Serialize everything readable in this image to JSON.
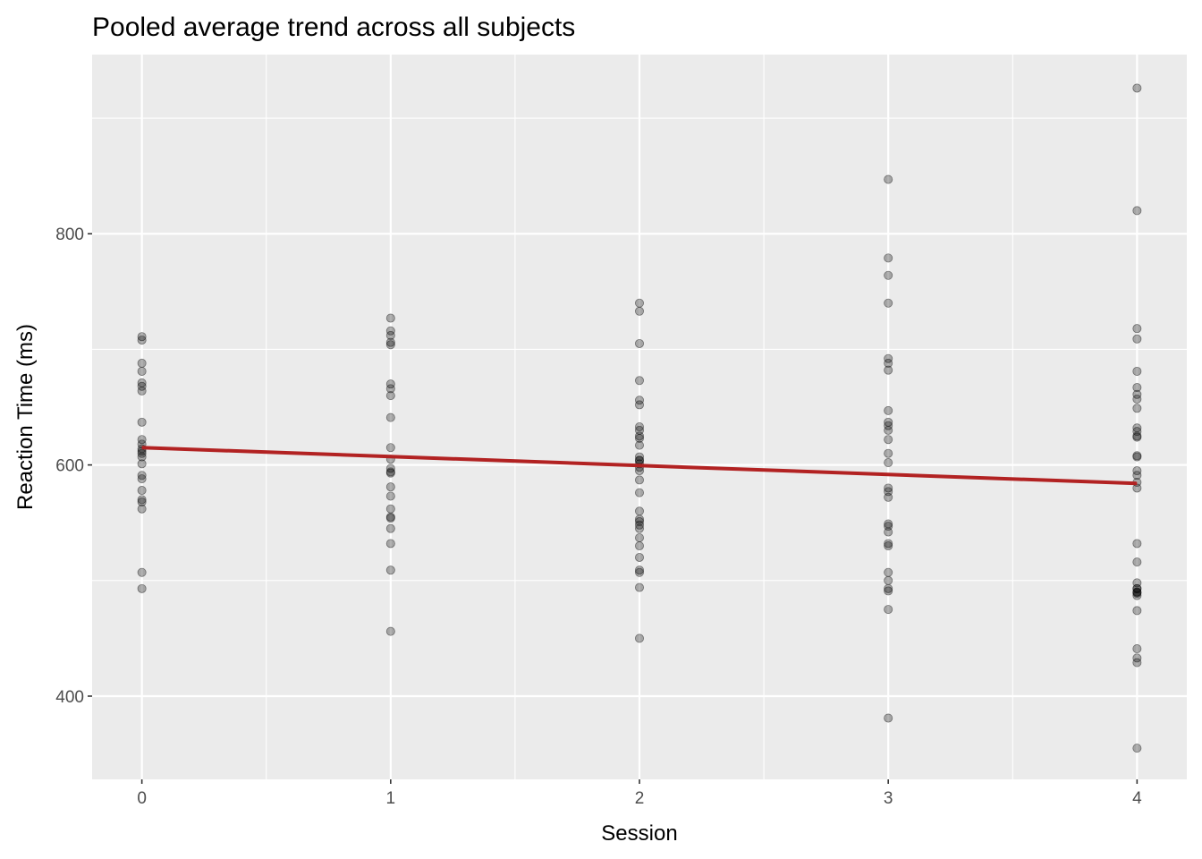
{
  "chart_data": {
    "type": "scatter",
    "title": "Pooled average trend across all subjects",
    "xlabel": "Session",
    "ylabel": "Reaction Time (ms)",
    "xlim": [
      -0.2,
      4.2
    ],
    "ylim": [
      328,
      955
    ],
    "x_ticks": [
      0,
      1,
      2,
      3,
      4
    ],
    "y_ticks": [
      400,
      600,
      800
    ],
    "grid": true,
    "legend": "none",
    "colors": {
      "panel": "#ebebeb",
      "grid": "#ffffff",
      "points": "#000000",
      "trend": "#b22222",
      "tick_text": "#4d4d4d",
      "tick_mark": "#333333"
    },
    "series": [
      {
        "x": [
          0,
          0,
          0,
          0,
          0,
          0,
          0,
          0,
          0,
          0,
          0,
          0,
          0,
          0,
          0,
          0,
          0,
          0,
          0,
          0,
          0,
          0,
          0
        ],
        "y": [
          711,
          708,
          688,
          681,
          671,
          668,
          664,
          637,
          622,
          618,
          614,
          612,
          610,
          607,
          601,
          591,
          588,
          578,
          570,
          568,
          562,
          507,
          493
        ]
      },
      {
        "x": [
          1,
          1,
          1,
          1,
          1,
          1,
          1,
          1,
          1,
          1,
          1,
          1,
          1,
          1,
          1,
          1,
          1,
          1,
          1,
          1,
          1,
          1,
          1
        ],
        "y": [
          727,
          716,
          712,
          706,
          704,
          670,
          666,
          660,
          641,
          615,
          605,
          597,
          594,
          593,
          581,
          573,
          562,
          555,
          554,
          545,
          532,
          509,
          456
        ]
      },
      {
        "x": [
          2,
          2,
          2,
          2,
          2,
          2,
          2,
          2,
          2,
          2,
          2,
          2,
          2,
          2,
          2,
          2,
          2,
          2,
          2,
          2,
          2,
          2,
          2,
          2,
          2,
          2,
          2,
          2,
          2,
          2,
          2
        ],
        "y": [
          740,
          733,
          705,
          673,
          656,
          652,
          633,
          630,
          625,
          617,
          607,
          604,
          601,
          598,
          595,
          587,
          576,
          560,
          553,
          551,
          548,
          537,
          530,
          520,
          509,
          507,
          494,
          450,
          623,
          604,
          545
        ]
      },
      {
        "x": [
          3,
          3,
          3,
          3,
          3,
          3,
          3,
          3,
          3,
          3,
          3,
          3,
          3,
          3,
          3,
          3,
          3,
          3,
          3,
          3,
          3,
          3,
          3,
          3,
          3,
          3,
          3,
          3
        ],
        "y": [
          847,
          779,
          764,
          740,
          692,
          688,
          682,
          647,
          637,
          634,
          630,
          622,
          610,
          602,
          580,
          577,
          572,
          549,
          547,
          542,
          532,
          530,
          507,
          500,
          493,
          491,
          475,
          381
        ]
      },
      {
        "x": [
          4,
          4,
          4,
          4,
          4,
          4,
          4,
          4,
          4,
          4,
          4,
          4,
          4,
          4,
          4,
          4,
          4,
          4,
          4,
          4,
          4,
          4,
          4,
          4,
          4,
          4,
          4,
          4,
          4,
          4,
          4,
          4,
          4
        ],
        "y": [
          926,
          820,
          718,
          709,
          681,
          667,
          661,
          657,
          649,
          632,
          629,
          625,
          607,
          595,
          591,
          585,
          580,
          532,
          516,
          498,
          493,
          490,
          489,
          487,
          474,
          441,
          433,
          429,
          355,
          608,
          624,
          490,
          493
        ]
      }
    ],
    "trend_line": {
      "x": [
        0,
        4
      ],
      "y": [
        615,
        584
      ]
    }
  }
}
